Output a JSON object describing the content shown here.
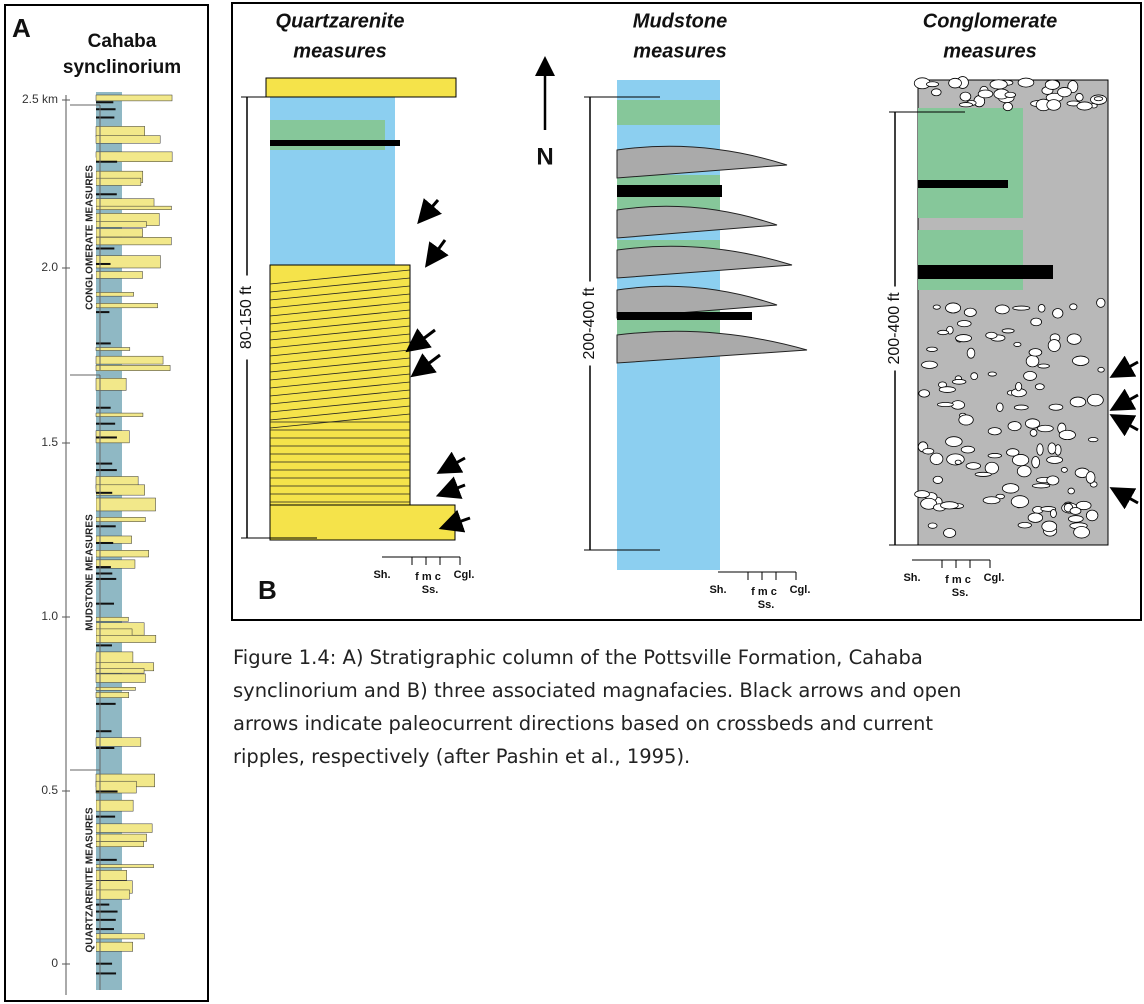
{
  "panel_a": {
    "label": "A",
    "title": [
      "Cahaba",
      "synclinorium"
    ],
    "depth_labels": [
      "2.5 km",
      "2.0",
      "1.5",
      "1.0",
      "0.5",
      "0"
    ],
    "intervals": [
      "CONGLOMERATE MEASURES",
      "MUDSTONE MEASURES",
      "QUARTZARENITE MEASURES"
    ]
  },
  "panel_b": {
    "label": "B",
    "north": "N",
    "columns": [
      {
        "title": [
          "Quartzarenite",
          "measures"
        ],
        "thickness": "80-150 ft",
        "scale": {
          "shale": "Sh.",
          "grain_sizes": "f m c",
          "conglomerate": "Cgl.",
          "sandstone": "Ss."
        }
      },
      {
        "title": [
          "Mudstone",
          "measures"
        ],
        "thickness": "200-400 ft",
        "scale": {
          "shale": "Sh.",
          "grain_sizes": "f m c",
          "conglomerate": "Cgl.",
          "sandstone": "Ss."
        }
      },
      {
        "title": [
          "Conglomerate",
          "measures"
        ],
        "thickness": "200-400 ft",
        "scale": {
          "shale": "Sh.",
          "grain_sizes": "f m c",
          "conglomerate": "Cgl.",
          "sandstone": "Ss."
        }
      }
    ]
  },
  "caption": {
    "lines": [
      "Figure 1.4: A) Stratigraphic column of the Pottsville Formation, Cahaba",
      "synclinorium and B) three associated magnafacies. Black arrows and open",
      "arrows indicate paleocurrent directions based on crossbeds and current",
      "ripples, respectively (after Pashin et al., 1995)."
    ]
  }
}
